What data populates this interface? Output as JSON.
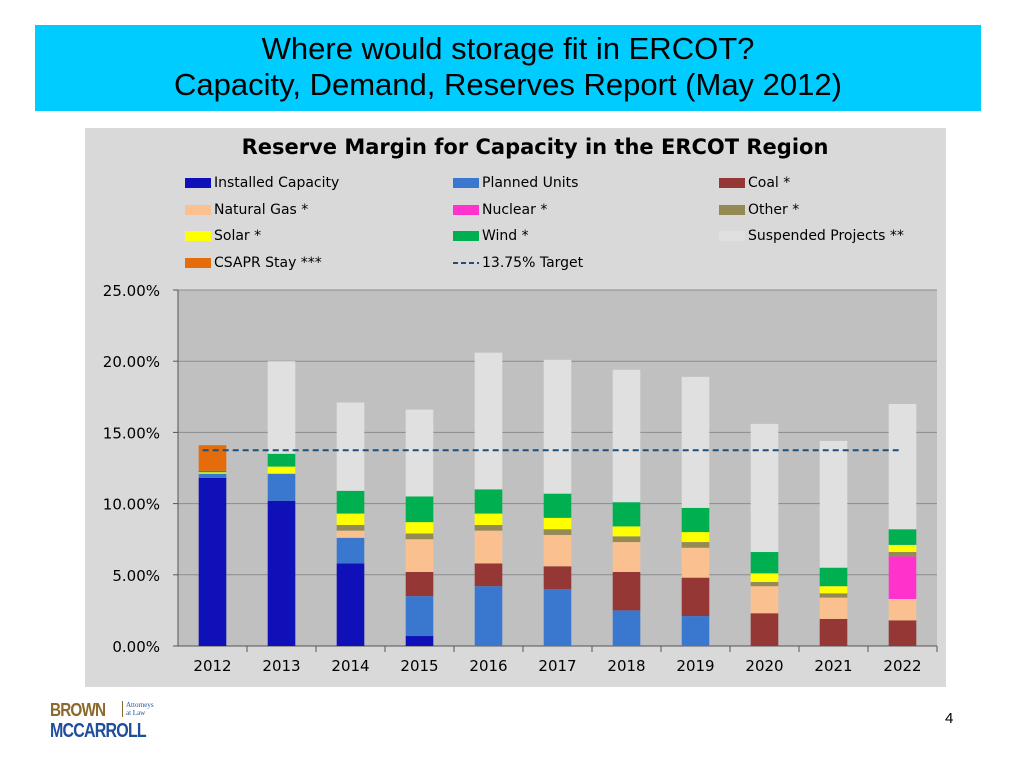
{
  "header": {
    "line1": "Where would storage fit in ERCOT?",
    "line2": "Capacity, Demand, Reserves Report (May 2012)"
  },
  "logo": {
    "brown": "BROWN",
    "mccarroll": "MCCARROLL",
    "tagline1": "Attorneys",
    "tagline2": "at Law"
  },
  "page_number": "4",
  "colors": {
    "header_band": "#00ccff",
    "plot_bg": "#c0c0c0",
    "panel_bg": "#d9d9d9"
  },
  "chart_data": {
    "type": "bar",
    "stacked": true,
    "title": "Reserve Margin for Capacity in the ERCOT Region",
    "categories": [
      "2012",
      "2013",
      "2014",
      "2015",
      "2016",
      "2017",
      "2018",
      "2019",
      "2020",
      "2021",
      "2022"
    ],
    "ylim": [
      0,
      25
    ],
    "yticks": [
      "0.00%",
      "5.00%",
      "10.00%",
      "15.00%",
      "20.00%",
      "25.00%"
    ],
    "ytick_values": [
      0,
      5,
      10,
      15,
      20,
      25
    ],
    "grid": true,
    "legend_position": "top",
    "series": [
      {
        "name": "Installed Capacity",
        "color": "#1010b8",
        "values": [
          11.8,
          10.2,
          5.8,
          0.7,
          0,
          0,
          0,
          0,
          0,
          0,
          0
        ]
      },
      {
        "name": "Planned Units",
        "color": "#3a78d0",
        "values": [
          0.3,
          1.9,
          1.8,
          2.8,
          4.2,
          4.0,
          2.5,
          2.1,
          0,
          0,
          0
        ]
      },
      {
        "name": "Coal *",
        "color": "#953735",
        "values": [
          0,
          0,
          0,
          1.7,
          1.6,
          1.6,
          2.7,
          2.7,
          2.3,
          1.9,
          1.8
        ]
      },
      {
        "name": "Natural Gas *",
        "color": "#fac090",
        "values": [
          0,
          0,
          0.5,
          2.3,
          2.3,
          2.2,
          2.1,
          2.1,
          1.9,
          1.5,
          1.5
        ]
      },
      {
        "name": "Nuclear *",
        "color": "#ff33cc",
        "values": [
          0,
          0,
          0,
          0,
          0,
          0,
          0,
          0,
          0,
          0,
          3.0
        ]
      },
      {
        "name": "Other *",
        "color": "#948a54",
        "values": [
          0,
          0,
          0.4,
          0.4,
          0.4,
          0.4,
          0.4,
          0.4,
          0.3,
          0.3,
          0.3
        ]
      },
      {
        "name": "Solar *",
        "color": "#ffff00",
        "values": [
          0.1,
          0.5,
          0.8,
          0.8,
          0.8,
          0.8,
          0.7,
          0.7,
          0.6,
          0.5,
          0.5
        ]
      },
      {
        "name": "Wind *",
        "color": "#00b050",
        "values": [
          0.1,
          0.9,
          1.6,
          1.8,
          1.7,
          1.7,
          1.7,
          1.7,
          1.5,
          1.3,
          1.1
        ]
      },
      {
        "name": "Suspended Projects **",
        "color": "#e0e0e0",
        "values": [
          0,
          6.5,
          6.2,
          6.1,
          9.6,
          9.4,
          9.3,
          9.2,
          9.0,
          8.9,
          8.8
        ]
      },
      {
        "name": "CSAPR Stay ***",
        "color": "#e46c0a",
        "values": [
          1.8,
          0,
          0,
          0,
          0,
          0,
          0,
          0,
          0,
          0,
          0
        ]
      }
    ],
    "target_line": {
      "name": "13.75% Target",
      "value": 13.75,
      "color": "#1f4e79"
    }
  }
}
